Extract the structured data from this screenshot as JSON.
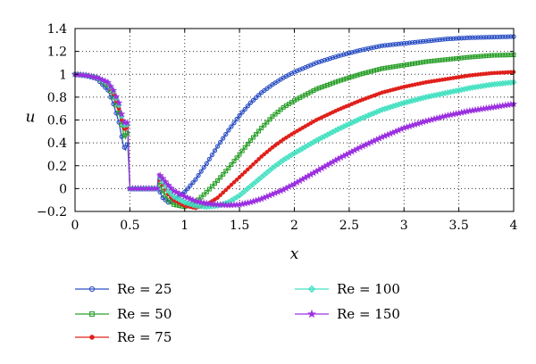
{
  "chart_data": {
    "type": "line",
    "title": "",
    "xlabel": "x",
    "ylabel": "u",
    "xlim": [
      0,
      4
    ],
    "ylim": [
      -0.2,
      1.4
    ],
    "xticks": [
      0,
      0.5,
      1,
      1.5,
      2,
      2.5,
      3,
      3.5,
      4
    ],
    "yticks": [
      -0.2,
      0,
      0.2,
      0.4,
      0.6,
      0.8,
      1,
      1.2,
      1.4
    ],
    "xtick_labels": [
      "0",
      "0.5",
      "1",
      "1.5",
      "2",
      "2.5",
      "3",
      "3.5",
      "4"
    ],
    "ytick_labels": [
      "−0.2",
      "0",
      "0.2",
      "0.4",
      "0.6",
      "0.8",
      "1",
      "1.2",
      "1.4"
    ],
    "grid": true,
    "legend_position": "below",
    "series": [
      {
        "name": "Re = 25",
        "color": "#2b4fc4",
        "marker": "circle",
        "points": [
          [
            0,
            1.0
          ],
          [
            0.1,
            0.99
          ],
          [
            0.2,
            0.96
          ],
          [
            0.3,
            0.86
          ],
          [
            0.35,
            0.74
          ],
          [
            0.4,
            0.58
          ],
          [
            0.42,
            0.48
          ],
          [
            0.44,
            0.38
          ],
          [
            0.46,
            0.34
          ],
          [
            0.48,
            0.4
          ],
          [
            0.5,
            0.0
          ],
          [
            0.75,
            0.0
          ],
          [
            0.76,
            0.0
          ],
          [
            0.8,
            -0.08
          ],
          [
            0.85,
            -0.12
          ],
          [
            0.9,
            -0.1
          ],
          [
            1.0,
            -0.03
          ],
          [
            1.1,
            0.08
          ],
          [
            1.2,
            0.22
          ],
          [
            1.3,
            0.37
          ],
          [
            1.4,
            0.51
          ],
          [
            1.5,
            0.64
          ],
          [
            1.6,
            0.75
          ],
          [
            1.7,
            0.84
          ],
          [
            1.8,
            0.91
          ],
          [
            1.9,
            0.97
          ],
          [
            2.0,
            1.02
          ],
          [
            2.2,
            1.1
          ],
          [
            2.4,
            1.16
          ],
          [
            2.6,
            1.21
          ],
          [
            2.8,
            1.25
          ],
          [
            3.0,
            1.27
          ],
          [
            3.2,
            1.29
          ],
          [
            3.4,
            1.31
          ],
          [
            3.6,
            1.32
          ],
          [
            3.8,
            1.325
          ],
          [
            4.0,
            1.33
          ]
        ]
      },
      {
        "name": "Re = 50",
        "color": "#2ca02c",
        "marker": "square",
        "points": [
          [
            0,
            1.0
          ],
          [
            0.1,
            0.99
          ],
          [
            0.2,
            0.97
          ],
          [
            0.3,
            0.9
          ],
          [
            0.35,
            0.8
          ],
          [
            0.4,
            0.66
          ],
          [
            0.42,
            0.58
          ],
          [
            0.44,
            0.49
          ],
          [
            0.46,
            0.44
          ],
          [
            0.48,
            0.5
          ],
          [
            0.5,
            0.0
          ],
          [
            0.75,
            0.0
          ],
          [
            0.76,
            0.06
          ],
          [
            0.8,
            -0.02
          ],
          [
            0.85,
            -0.1
          ],
          [
            0.9,
            -0.14
          ],
          [
            1.0,
            -0.16
          ],
          [
            1.1,
            -0.12
          ],
          [
            1.2,
            -0.03
          ],
          [
            1.3,
            0.07
          ],
          [
            1.4,
            0.18
          ],
          [
            1.5,
            0.3
          ],
          [
            1.6,
            0.42
          ],
          [
            1.7,
            0.53
          ],
          [
            1.8,
            0.63
          ],
          [
            1.9,
            0.71
          ],
          [
            2.0,
            0.77
          ],
          [
            2.2,
            0.87
          ],
          [
            2.4,
            0.94
          ],
          [
            2.6,
            1.0
          ],
          [
            2.8,
            1.05
          ],
          [
            3.0,
            1.08
          ],
          [
            3.2,
            1.11
          ],
          [
            3.4,
            1.13
          ],
          [
            3.6,
            1.15
          ],
          [
            3.8,
            1.165
          ],
          [
            4.0,
            1.17
          ]
        ]
      },
      {
        "name": "Re = 75",
        "color": "#e0201b",
        "marker": "dot",
        "points": [
          [
            0,
            1.0
          ],
          [
            0.1,
            0.99
          ],
          [
            0.2,
            0.97
          ],
          [
            0.3,
            0.91
          ],
          [
            0.35,
            0.83
          ],
          [
            0.4,
            0.7
          ],
          [
            0.42,
            0.62
          ],
          [
            0.44,
            0.55
          ],
          [
            0.46,
            0.5
          ],
          [
            0.48,
            0.55
          ],
          [
            0.5,
            0.0
          ],
          [
            0.75,
            0.0
          ],
          [
            0.76,
            0.1
          ],
          [
            0.8,
            0.03
          ],
          [
            0.85,
            -0.05
          ],
          [
            0.9,
            -0.1
          ],
          [
            1.0,
            -0.15
          ],
          [
            1.1,
            -0.17
          ],
          [
            1.2,
            -0.14
          ],
          [
            1.3,
            -0.08
          ],
          [
            1.4,
            0.01
          ],
          [
            1.5,
            0.1
          ],
          [
            1.6,
            0.19
          ],
          [
            1.7,
            0.28
          ],
          [
            1.8,
            0.36
          ],
          [
            1.9,
            0.43
          ],
          [
            2.0,
            0.49
          ],
          [
            2.2,
            0.6
          ],
          [
            2.4,
            0.69
          ],
          [
            2.6,
            0.77
          ],
          [
            2.8,
            0.84
          ],
          [
            3.0,
            0.89
          ],
          [
            3.2,
            0.93
          ],
          [
            3.4,
            0.96
          ],
          [
            3.6,
            0.99
          ],
          [
            3.8,
            1.01
          ],
          [
            4.0,
            1.02
          ]
        ]
      },
      {
        "name": "Re = 100",
        "color": "#40e0c0",
        "marker": "diamond",
        "points": [
          [
            0,
            1.0
          ],
          [
            0.1,
            0.99
          ],
          [
            0.2,
            0.97
          ],
          [
            0.3,
            0.92
          ],
          [
            0.35,
            0.85
          ],
          [
            0.4,
            0.73
          ],
          [
            0.42,
            0.65
          ],
          [
            0.44,
            0.58
          ],
          [
            0.46,
            0.53
          ],
          [
            0.48,
            0.57
          ],
          [
            0.5,
            0.0
          ],
          [
            0.75,
            0.0
          ],
          [
            0.76,
            0.12
          ],
          [
            0.8,
            0.06
          ],
          [
            0.85,
            -0.02
          ],
          [
            0.9,
            -0.07
          ],
          [
            1.0,
            -0.12
          ],
          [
            1.1,
            -0.15
          ],
          [
            1.2,
            -0.16
          ],
          [
            1.3,
            -0.15
          ],
          [
            1.4,
            -0.12
          ],
          [
            1.5,
            -0.06
          ],
          [
            1.6,
            0.02
          ],
          [
            1.7,
            0.1
          ],
          [
            1.8,
            0.18
          ],
          [
            1.9,
            0.25
          ],
          [
            2.0,
            0.31
          ],
          [
            2.2,
            0.42
          ],
          [
            2.4,
            0.52
          ],
          [
            2.6,
            0.61
          ],
          [
            2.8,
            0.69
          ],
          [
            3.0,
            0.75
          ],
          [
            3.2,
            0.8
          ],
          [
            3.4,
            0.84
          ],
          [
            3.6,
            0.88
          ],
          [
            3.8,
            0.91
          ],
          [
            4.0,
            0.93
          ]
        ]
      },
      {
        "name": "Re = 150",
        "color": "#9b30e0",
        "marker": "star",
        "points": [
          [
            0,
            1.0
          ],
          [
            0.1,
            0.99
          ],
          [
            0.2,
            0.97
          ],
          [
            0.3,
            0.93
          ],
          [
            0.35,
            0.86
          ],
          [
            0.4,
            0.75
          ],
          [
            0.42,
            0.67
          ],
          [
            0.44,
            0.6
          ],
          [
            0.46,
            0.56
          ],
          [
            0.48,
            0.58
          ],
          [
            0.5,
            0.0
          ],
          [
            0.75,
            0.0
          ],
          [
            0.76,
            0.13
          ],
          [
            0.8,
            0.09
          ],
          [
            0.85,
            0.03
          ],
          [
            0.9,
            -0.02
          ],
          [
            1.0,
            -0.07
          ],
          [
            1.1,
            -0.11
          ],
          [
            1.2,
            -0.13
          ],
          [
            1.3,
            -0.14
          ],
          [
            1.4,
            -0.145
          ],
          [
            1.5,
            -0.14
          ],
          [
            1.6,
            -0.12
          ],
          [
            1.7,
            -0.09
          ],
          [
            1.8,
            -0.05
          ],
          [
            1.9,
            -0.01
          ],
          [
            2.0,
            0.04
          ],
          [
            2.2,
            0.15
          ],
          [
            2.4,
            0.26
          ],
          [
            2.6,
            0.36
          ],
          [
            2.8,
            0.45
          ],
          [
            3.0,
            0.53
          ],
          [
            3.2,
            0.59
          ],
          [
            3.4,
            0.64
          ],
          [
            3.6,
            0.68
          ],
          [
            3.8,
            0.71
          ],
          [
            4.0,
            0.74
          ]
        ]
      }
    ]
  }
}
